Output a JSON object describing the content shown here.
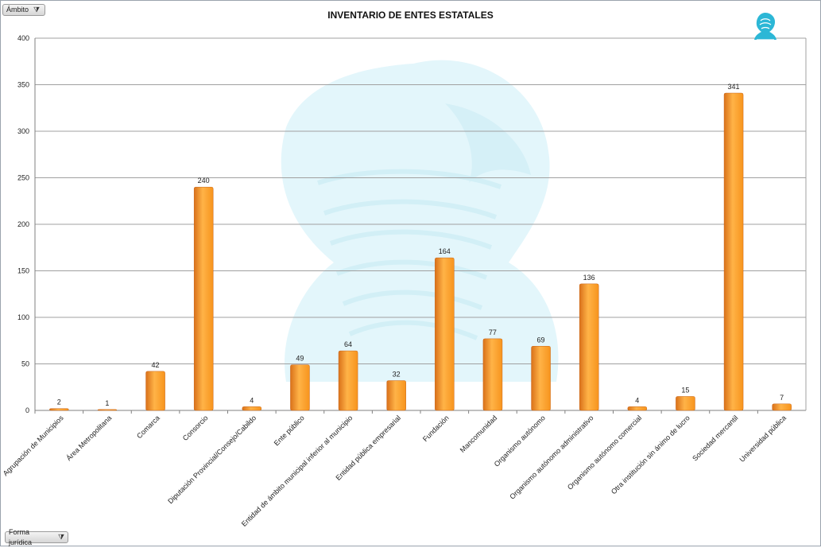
{
  "filters": {
    "top": {
      "label": "Ámbito",
      "icon": "filter-icon"
    },
    "bottom": {
      "label": "Forma jurídica",
      "icon": "filter-icon"
    }
  },
  "chart_data": {
    "type": "bar",
    "title": "INVENTARIO DE ENTES ESTATALES",
    "xlabel": "",
    "ylabel": "",
    "ylim": [
      0,
      400
    ],
    "yticks": [
      0,
      50,
      100,
      150,
      200,
      250,
      300,
      350,
      400
    ],
    "grid": true,
    "categories": [
      "Agrupación de Municipios",
      "Área Metropolitana",
      "Comarca",
      "Consorcio",
      "Diputación Provincial/Consejo/Cabildo",
      "Ente público",
      "Entidad de ámbito municipal inferior al municipio",
      "Entidad pública empresarial",
      "Fundación",
      "Mancomunidad",
      "Organismo autónomo",
      "Organismo autónomo administrativo",
      "Organismo autónomo comercial",
      "Otra institución sin ánimo de lucro",
      "Sociedad mercantil",
      "Universidad pública"
    ],
    "values": [
      2,
      1,
      42,
      240,
      4,
      49,
      64,
      32,
      164,
      77,
      69,
      136,
      4,
      15,
      341,
      7
    ],
    "colors": {
      "bar_light": "#ffb347",
      "bar_mid": "#f7941d",
      "bar_dark": "#d9711a",
      "grid": "#a0a0a0",
      "axis": "#808080",
      "watermark": "#e3f6fb",
      "logo": "#2cb7d6"
    }
  }
}
